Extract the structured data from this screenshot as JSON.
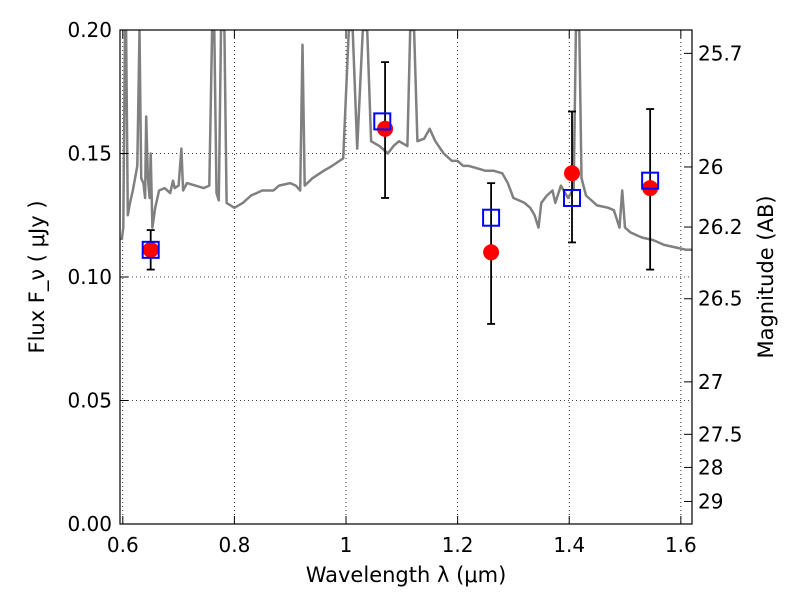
{
  "chart_data": {
    "type": "scatter",
    "title": "",
    "xlabel": "Wavelength  λ (μm)",
    "ylabel": "Flux  F_ν  ( μJy )",
    "y2label": "Magnitude (AB)",
    "xlim": [
      0.595,
      1.62
    ],
    "ylim": [
      0.0,
      0.2
    ],
    "grid": true,
    "x_ticks": [
      {
        "value": 0.6,
        "label": "0.6"
      },
      {
        "value": 0.8,
        "label": "0.8"
      },
      {
        "value": 1.0,
        "label": "1"
      },
      {
        "value": 1.2,
        "label": "1.2"
      },
      {
        "value": 1.4,
        "label": "1.4"
      },
      {
        "value": 1.6,
        "label": "1.6"
      }
    ],
    "y_ticks": [
      {
        "value": 0.0,
        "label": "0.00"
      },
      {
        "value": 0.05,
        "label": "0.05"
      },
      {
        "value": 0.1,
        "label": "0.10"
      },
      {
        "value": 0.15,
        "label": "0.15"
      },
      {
        "value": 0.2,
        "label": "0.20"
      }
    ],
    "y2_ticks": [
      {
        "value": 25.7,
        "label": "25.7"
      },
      {
        "value": 26.0,
        "label": "26"
      },
      {
        "value": 26.2,
        "label": "26.2"
      },
      {
        "value": 26.5,
        "label": "26.5"
      },
      {
        "value": 27.0,
        "label": "27"
      },
      {
        "value": 27.5,
        "label": "27.5"
      },
      {
        "value": 28.0,
        "label": "28"
      },
      {
        "value": 29.0,
        "label": "29"
      }
    ],
    "series": [
      {
        "type": "line",
        "color": "#808080",
        "points": [
          [
            0.598,
            0.115
          ],
          [
            0.601,
            0.12
          ],
          [
            0.604,
            0.2
          ],
          [
            0.606,
            0.2
          ],
          [
            0.609,
            0.125
          ],
          [
            0.613,
            0.13
          ],
          [
            0.618,
            0.135
          ],
          [
            0.622,
            0.14
          ],
          [
            0.626,
            0.145
          ],
          [
            0.63,
            0.2
          ],
          [
            0.633,
            0.14
          ],
          [
            0.637,
            0.138
          ],
          [
            0.64,
            0.132
          ],
          [
            0.642,
            0.165
          ],
          [
            0.645,
            0.14
          ],
          [
            0.648,
            0.132
          ],
          [
            0.65,
            0.15
          ],
          [
            0.653,
            0.12
          ],
          [
            0.658,
            0.128
          ],
          [
            0.665,
            0.135
          ],
          [
            0.675,
            0.136
          ],
          [
            0.685,
            0.134
          ],
          [
            0.69,
            0.139
          ],
          [
            0.693,
            0.136
          ],
          [
            0.7,
            0.137
          ],
          [
            0.705,
            0.152
          ],
          [
            0.708,
            0.135
          ],
          [
            0.715,
            0.138
          ],
          [
            0.73,
            0.137
          ],
          [
            0.745,
            0.136
          ],
          [
            0.755,
            0.137
          ],
          [
            0.76,
            0.2
          ],
          [
            0.764,
            0.2
          ],
          [
            0.768,
            0.134
          ],
          [
            0.772,
            0.131
          ],
          [
            0.776,
            0.2
          ],
          [
            0.782,
            0.2
          ],
          [
            0.786,
            0.13
          ],
          [
            0.8,
            0.128
          ],
          [
            0.815,
            0.13
          ],
          [
            0.83,
            0.133
          ],
          [
            0.85,
            0.135
          ],
          [
            0.87,
            0.135
          ],
          [
            0.88,
            0.137
          ],
          [
            0.9,
            0.138
          ],
          [
            0.91,
            0.137
          ],
          [
            0.918,
            0.135
          ],
          [
            0.922,
            0.194
          ],
          [
            0.926,
            0.137
          ],
          [
            0.94,
            0.14
          ],
          [
            0.96,
            0.143
          ],
          [
            0.975,
            0.145
          ],
          [
            0.995,
            0.148
          ],
          [
            1.005,
            0.2
          ],
          [
            1.012,
            0.2
          ],
          [
            1.02,
            0.152
          ],
          [
            1.03,
            0.2
          ],
          [
            1.038,
            0.2
          ],
          [
            1.045,
            0.155
          ],
          [
            1.06,
            0.153
          ],
          [
            1.075,
            0.15
          ],
          [
            1.085,
            0.153
          ],
          [
            1.095,
            0.155
          ],
          [
            1.11,
            0.153
          ],
          [
            1.115,
            0.2
          ],
          [
            1.122,
            0.2
          ],
          [
            1.128,
            0.155
          ],
          [
            1.14,
            0.156
          ],
          [
            1.15,
            0.16
          ],
          [
            1.16,
            0.155
          ],
          [
            1.175,
            0.15
          ],
          [
            1.19,
            0.147
          ],
          [
            1.2,
            0.147
          ],
          [
            1.21,
            0.145
          ],
          [
            1.22,
            0.145
          ],
          [
            1.235,
            0.144
          ],
          [
            1.25,
            0.143
          ],
          [
            1.265,
            0.143
          ],
          [
            1.28,
            0.142
          ],
          [
            1.29,
            0.138
          ],
          [
            1.3,
            0.132
          ],
          [
            1.31,
            0.131
          ],
          [
            1.32,
            0.13
          ],
          [
            1.33,
            0.128
          ],
          [
            1.338,
            0.125
          ],
          [
            1.345,
            0.12
          ],
          [
            1.35,
            0.13
          ],
          [
            1.36,
            0.133
          ],
          [
            1.37,
            0.135
          ],
          [
            1.375,
            0.13
          ],
          [
            1.385,
            0.137
          ],
          [
            1.39,
            0.135
          ],
          [
            1.398,
            0.132
          ],
          [
            1.408,
            0.136
          ],
          [
            1.412,
            0.2
          ],
          [
            1.418,
            0.2
          ],
          [
            1.422,
            0.14
          ],
          [
            1.43,
            0.133
          ],
          [
            1.45,
            0.129
          ],
          [
            1.47,
            0.128
          ],
          [
            1.48,
            0.127
          ],
          [
            1.49,
            0.12
          ],
          [
            1.495,
            0.135
          ],
          [
            1.5,
            0.12
          ],
          [
            1.51,
            0.118
          ],
          [
            1.53,
            0.116
          ],
          [
            1.55,
            0.115
          ],
          [
            1.57,
            0.113
          ],
          [
            1.59,
            0.112
          ],
          [
            1.61,
            0.111
          ],
          [
            1.62,
            0.111
          ]
        ]
      },
      {
        "type": "scatter",
        "marker": "circle",
        "color": "#ff0000",
        "points": [
          [
            0.65,
            0.111
          ],
          [
            1.07,
            0.16
          ],
          [
            1.26,
            0.11
          ],
          [
            1.405,
            0.142
          ],
          [
            1.545,
            0.136
          ]
        ]
      },
      {
        "type": "scatter",
        "marker": "square-open",
        "color": "#0000ff",
        "points": [
          [
            0.65,
            0.111
          ],
          [
            1.065,
            0.163
          ],
          [
            1.26,
            0.124
          ],
          [
            1.405,
            0.132
          ],
          [
            1.545,
            0.139
          ]
        ]
      },
      {
        "type": "errorbar",
        "color": "#000000",
        "points": [
          {
            "x": 0.65,
            "low": 0.103,
            "high": 0.119
          },
          {
            "x": 1.07,
            "low": 0.132,
            "high": 0.187
          },
          {
            "x": 1.26,
            "low": 0.081,
            "high": 0.138
          },
          {
            "x": 1.405,
            "low": 0.114,
            "high": 0.167
          },
          {
            "x": 1.545,
            "low": 0.103,
            "high": 0.168
          }
        ]
      }
    ]
  }
}
